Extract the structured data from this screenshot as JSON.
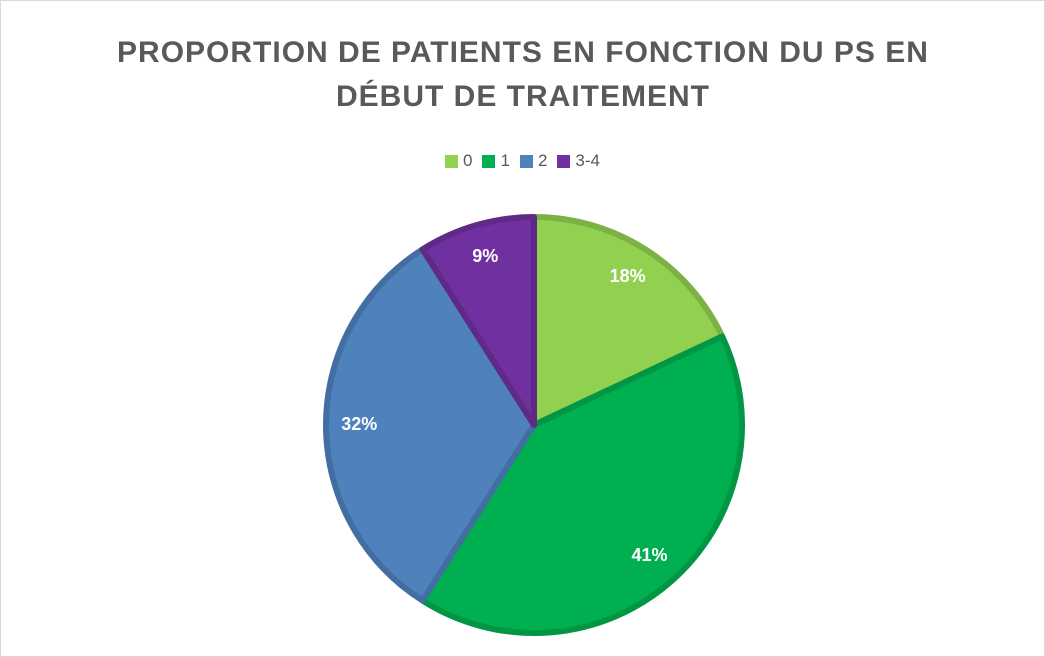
{
  "chart_data": {
    "type": "pie",
    "title": "PROPORTION DE PATIENTS EN FONCTION DU PS EN DÉBUT DE TRAITEMENT",
    "categories": [
      "0",
      "1",
      "2",
      "3-4"
    ],
    "values": [
      18,
      41,
      32,
      9
    ],
    "value_labels": [
      "18%",
      "41%",
      "32%",
      "9%"
    ],
    "colors": [
      "#92d050",
      "#00b050",
      "#4f81bd",
      "#7030a0"
    ]
  }
}
